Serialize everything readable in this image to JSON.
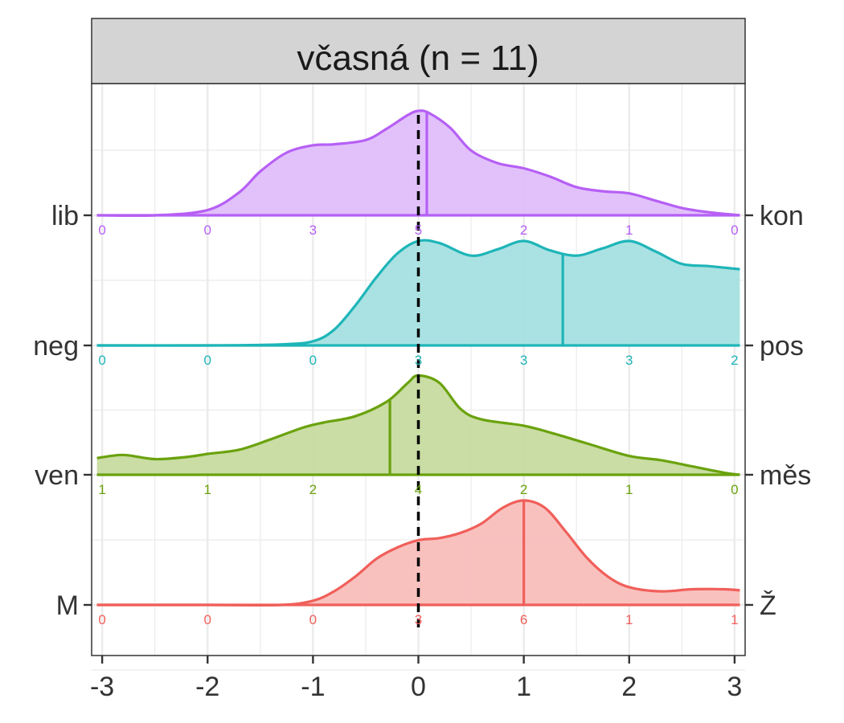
{
  "chart_data": {
    "type": "ridgeline",
    "strip_title": "včasná (n = 11)",
    "xlabel": "",
    "ylabel": "",
    "xlim": [
      -3.1,
      3.1
    ],
    "x_ticks": [
      "-3",
      "-2",
      "-1",
      "0",
      "1",
      "2",
      "3"
    ],
    "x_tick_values": [
      -3,
      -2,
      -1,
      0,
      1,
      2,
      3
    ],
    "reference_line": 0,
    "x_grid": [
      -3,
      -2.5,
      -2,
      -1.5,
      -1,
      -0.5,
      0,
      0.5,
      1,
      1.5,
      2,
      2.5,
      3
    ],
    "count_positions": [
      -3,
      -2,
      -1,
      0,
      1,
      2,
      3
    ],
    "rows": [
      {
        "left_label": "lib",
        "right_label": "kon",
        "color": "#B65FF5",
        "fill": "#E0BCFB",
        "mean": 0.08,
        "counts": [
          "0",
          "0",
          "3",
          "5",
          "2",
          "1",
          "0"
        ],
        "density_x": [
          -3.05,
          -2.5,
          -2.0,
          -1.7,
          -1.5,
          -1.25,
          -1.0,
          -0.8,
          -0.5,
          -0.3,
          -0.1,
          0.0,
          0.1,
          0.3,
          0.5,
          0.75,
          1.0,
          1.25,
          1.5,
          1.75,
          2.0,
          2.25,
          2.5,
          2.75,
          3.05
        ],
        "density_y": [
          0.0,
          0.0,
          0.05,
          0.22,
          0.42,
          0.6,
          0.67,
          0.68,
          0.72,
          0.83,
          0.96,
          1.0,
          0.98,
          0.84,
          0.62,
          0.5,
          0.45,
          0.37,
          0.27,
          0.23,
          0.21,
          0.14,
          0.07,
          0.03,
          0.0
        ]
      },
      {
        "left_label": "neg",
        "right_label": "pos",
        "color": "#1EB5B8",
        "fill": "#A3E0E1",
        "mean": 1.37,
        "counts": [
          "0",
          "0",
          "0",
          "3",
          "3",
          "3",
          "2"
        ],
        "density_x": [
          -3.05,
          -2.0,
          -1.3,
          -1.0,
          -0.8,
          -0.6,
          -0.4,
          -0.2,
          0.0,
          0.2,
          0.5,
          0.75,
          1.0,
          1.25,
          1.5,
          1.75,
          2.0,
          2.25,
          2.5,
          2.75,
          3.05
        ],
        "density_y": [
          0.0,
          0.0,
          0.01,
          0.04,
          0.15,
          0.38,
          0.65,
          0.88,
          1.0,
          0.98,
          0.86,
          0.92,
          1.0,
          0.91,
          0.86,
          0.93,
          1.0,
          0.9,
          0.78,
          0.76,
          0.73
        ]
      },
      {
        "left_label": "ven",
        "right_label": "měs",
        "color": "#6AA20D",
        "fill": "#C4DA9C",
        "mean": -0.27,
        "counts": [
          "1",
          "1",
          "2",
          "4",
          "2",
          "1",
          "0"
        ],
        "density_x": [
          -3.05,
          -2.8,
          -2.5,
          -2.2,
          -2.0,
          -1.7,
          -1.4,
          -1.1,
          -0.9,
          -0.6,
          -0.3,
          -0.1,
          0.0,
          0.2,
          0.4,
          0.6,
          1.0,
          1.3,
          1.6,
          2.0,
          2.3,
          2.6,
          2.9,
          3.05
        ],
        "density_y": [
          0.16,
          0.19,
          0.15,
          0.17,
          0.2,
          0.24,
          0.34,
          0.45,
          0.5,
          0.56,
          0.7,
          0.88,
          0.95,
          0.88,
          0.63,
          0.53,
          0.47,
          0.39,
          0.3,
          0.18,
          0.14,
          0.08,
          0.02,
          0.0
        ]
      },
      {
        "left_label": "M",
        "right_label": "Ž",
        "color": "#F05F5A",
        "fill": "#F8BCB9",
        "mean": 1.0,
        "counts": [
          "0",
          "0",
          "0",
          "3",
          "6",
          "1",
          "1"
        ],
        "density_x": [
          -3.05,
          -2.0,
          -1.3,
          -1.0,
          -0.8,
          -0.6,
          -0.4,
          -0.2,
          0.0,
          0.2,
          0.4,
          0.6,
          0.8,
          1.0,
          1.2,
          1.4,
          1.6,
          1.8,
          2.0,
          2.3,
          2.6,
          2.9,
          3.05
        ],
        "density_y": [
          0.0,
          0.0,
          0.0,
          0.04,
          0.13,
          0.27,
          0.44,
          0.55,
          0.62,
          0.64,
          0.69,
          0.78,
          0.93,
          1.0,
          0.93,
          0.7,
          0.45,
          0.27,
          0.17,
          0.13,
          0.15,
          0.15,
          0.14
        ]
      }
    ]
  }
}
